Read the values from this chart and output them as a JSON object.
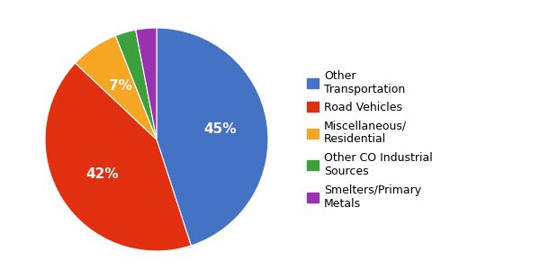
{
  "labels": [
    "Other Transportation",
    "Road Vehicles",
    "Miscellaneous/\nResidential",
    "Other CO Industrial\nSources",
    "Smelters/Primary\nMetals"
  ],
  "values": [
    45,
    42,
    7,
    3,
    3
  ],
  "colors": [
    "#4472C4",
    "#E03010",
    "#F5A623",
    "#3CA03C",
    "#9B30B0"
  ],
  "autopct_labels": [
    "45%",
    "42%",
    "7%",
    "",
    ""
  ],
  "startangle": 90,
  "background_color": "#ffffff",
  "legend_labels": [
    "Other\nTransportation",
    "Road Vehicles",
    "Miscellaneous/\nResidential",
    "Other CO Industrial\nSources",
    "Smelters/Primary\nMetals"
  ],
  "text_fontsize": 11,
  "legend_fontsize": 9
}
